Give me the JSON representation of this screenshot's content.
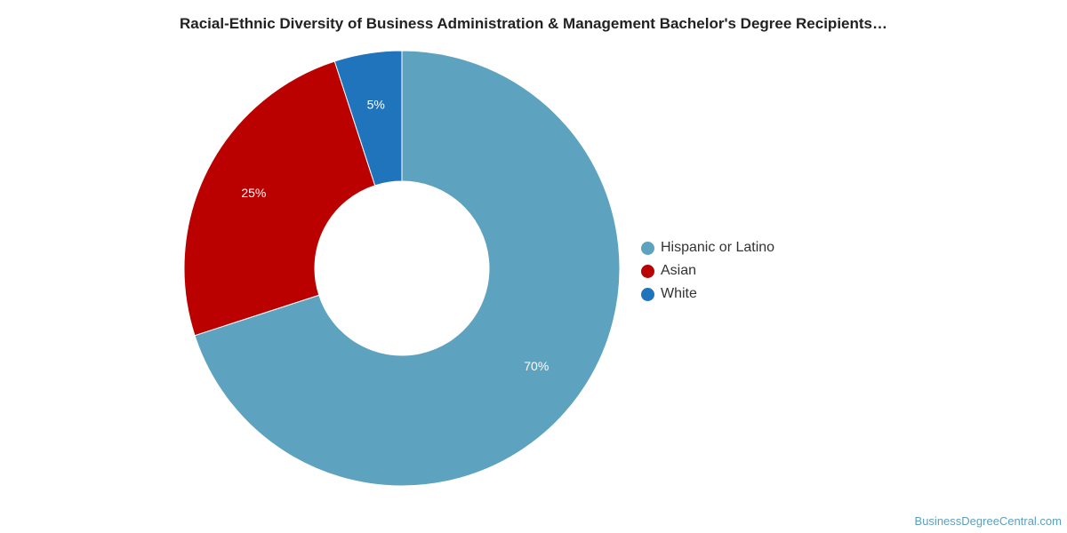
{
  "chart_data": {
    "type": "pie",
    "variant": "donut",
    "title": "Racial-Ethnic Diversity of Business Administration & Management Bachelor's Degree Recipients…",
    "categories": [
      "Hispanic or Latino",
      "Asian",
      "White"
    ],
    "values": [
      70,
      25,
      5
    ],
    "labels": [
      "70%",
      "25%",
      "5%"
    ],
    "colors": [
      "#5da2bf",
      "#bb0000",
      "#1f74bb"
    ],
    "legend_position": "right"
  },
  "watermark": "BusinessDegreeCentral.com"
}
